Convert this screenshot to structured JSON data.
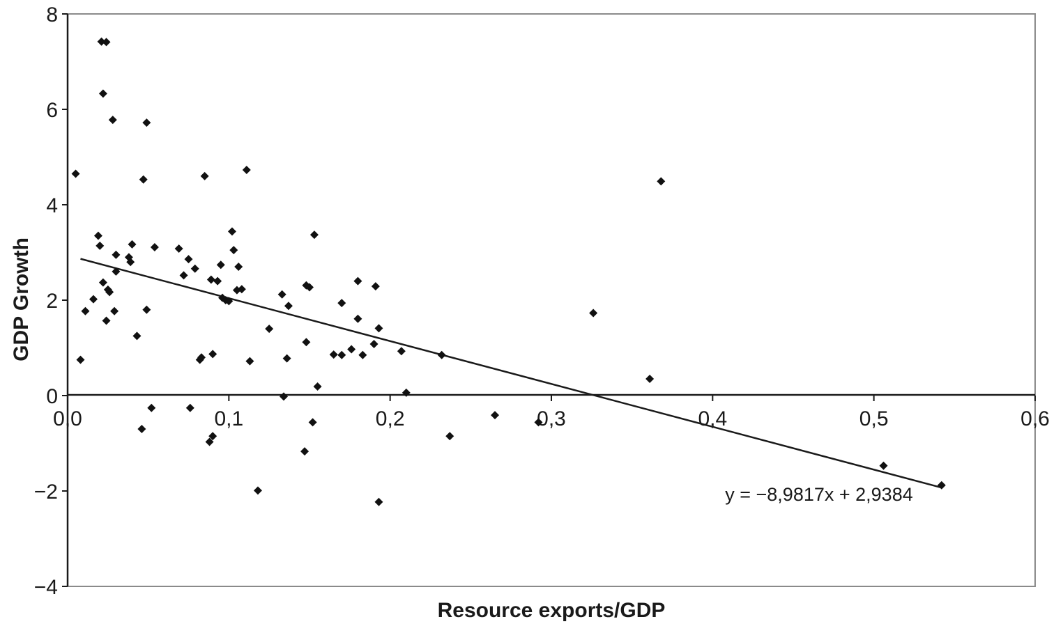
{
  "chart_data": {
    "type": "scatter",
    "xlabel": "Resource exports/GDP",
    "ylabel": "GDP Growth",
    "xlim": [
      0,
      0.6
    ],
    "ylim": [
      -4,
      8
    ],
    "x_ticks": [
      "0,0",
      "0,1",
      "0,2",
      "0,3",
      "0,4",
      "0,5",
      "0,6"
    ],
    "y_ticks": [
      "8",
      "6",
      "4",
      "2",
      "0",
      "−2",
      "−4"
    ],
    "grid": false,
    "marker_color": "#111111",
    "trendline": {
      "slope": -8.9817,
      "intercept": 2.9384,
      "x_range": [
        0.008,
        0.542
      ],
      "label": "y = −8,9817x + 2,9384"
    },
    "series": [
      {
        "points": [
          [
            0.005,
            4.65
          ],
          [
            0.008,
            0.75
          ],
          [
            0.011,
            1.77
          ],
          [
            0.016,
            2.02
          ],
          [
            0.019,
            3.35
          ],
          [
            0.02,
            3.14
          ],
          [
            0.021,
            7.42
          ],
          [
            0.022,
            6.33
          ],
          [
            0.022,
            2.37
          ],
          [
            0.024,
            7.41
          ],
          [
            0.024,
            1.57
          ],
          [
            0.025,
            2.22
          ],
          [
            0.026,
            2.17
          ],
          [
            0.028,
            5.78
          ],
          [
            0.029,
            1.77
          ],
          [
            0.03,
            2.95
          ],
          [
            0.03,
            2.6
          ],
          [
            0.038,
            2.9
          ],
          [
            0.039,
            2.8
          ],
          [
            0.04,
            3.17
          ],
          [
            0.043,
            1.25
          ],
          [
            0.046,
            -0.7
          ],
          [
            0.047,
            4.53
          ],
          [
            0.049,
            5.72
          ],
          [
            0.049,
            1.8
          ],
          [
            0.052,
            -0.26
          ],
          [
            0.054,
            3.11
          ],
          [
            0.069,
            3.08
          ],
          [
            0.072,
            2.52
          ],
          [
            0.075,
            2.86
          ],
          [
            0.076,
            -0.26
          ],
          [
            0.079,
            2.66
          ],
          [
            0.082,
            0.75
          ],
          [
            0.083,
            0.8
          ],
          [
            0.085,
            4.6
          ],
          [
            0.088,
            -0.97
          ],
          [
            0.089,
            2.43
          ],
          [
            0.09,
            -0.85
          ],
          [
            0.09,
            0.87
          ],
          [
            0.093,
            2.4
          ],
          [
            0.095,
            2.74
          ],
          [
            0.096,
            2.05
          ],
          [
            0.098,
            2.0
          ],
          [
            0.1,
            1.98
          ],
          [
            0.102,
            3.44
          ],
          [
            0.103,
            3.05
          ],
          [
            0.105,
            2.21
          ],
          [
            0.106,
            2.7
          ],
          [
            0.108,
            2.23
          ],
          [
            0.111,
            4.73
          ],
          [
            0.113,
            0.72
          ],
          [
            0.118,
            -1.99
          ],
          [
            0.125,
            1.4
          ],
          [
            0.133,
            2.12
          ],
          [
            0.134,
            -0.02
          ],
          [
            0.136,
            0.78
          ],
          [
            0.137,
            1.88
          ],
          [
            0.147,
            -1.17
          ],
          [
            0.148,
            2.31
          ],
          [
            0.148,
            1.12
          ],
          [
            0.15,
            2.27
          ],
          [
            0.152,
            -0.56
          ],
          [
            0.153,
            3.37
          ],
          [
            0.155,
            0.19
          ],
          [
            0.165,
            0.86
          ],
          [
            0.17,
            1.94
          ],
          [
            0.17,
            0.85
          ],
          [
            0.176,
            0.97
          ],
          [
            0.18,
            2.4
          ],
          [
            0.18,
            1.61
          ],
          [
            0.183,
            0.85
          ],
          [
            0.19,
            1.08
          ],
          [
            0.191,
            2.29
          ],
          [
            0.193,
            1.41
          ],
          [
            0.193,
            -2.23
          ],
          [
            0.207,
            0.93
          ],
          [
            0.21,
            0.06
          ],
          [
            0.232,
            0.85
          ],
          [
            0.237,
            -0.85
          ],
          [
            0.265,
            -0.41
          ],
          [
            0.292,
            -0.56
          ],
          [
            0.326,
            1.73
          ],
          [
            0.361,
            0.35
          ],
          [
            0.368,
            4.49
          ],
          [
            0.506,
            -1.47
          ],
          [
            0.542,
            -1.88
          ]
        ]
      }
    ]
  }
}
